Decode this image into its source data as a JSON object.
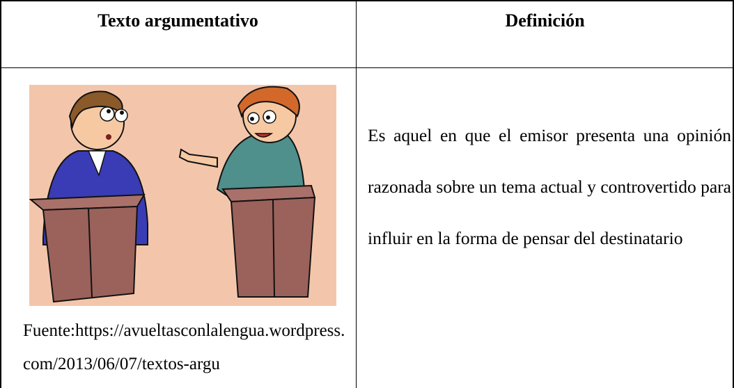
{
  "table": {
    "headers": [
      "Texto argumentativo",
      "Definición"
    ],
    "rows": [
      [
        "Fuente:https://avueltasconlalengua.wordpress.com/2013/06/07/textos-argu",
        "Es aquel en que el emisor presenta una opinión razonada sobre un tema actual y controvertido para influir en la forma de pensar del destinatario"
      ]
    ]
  }
}
